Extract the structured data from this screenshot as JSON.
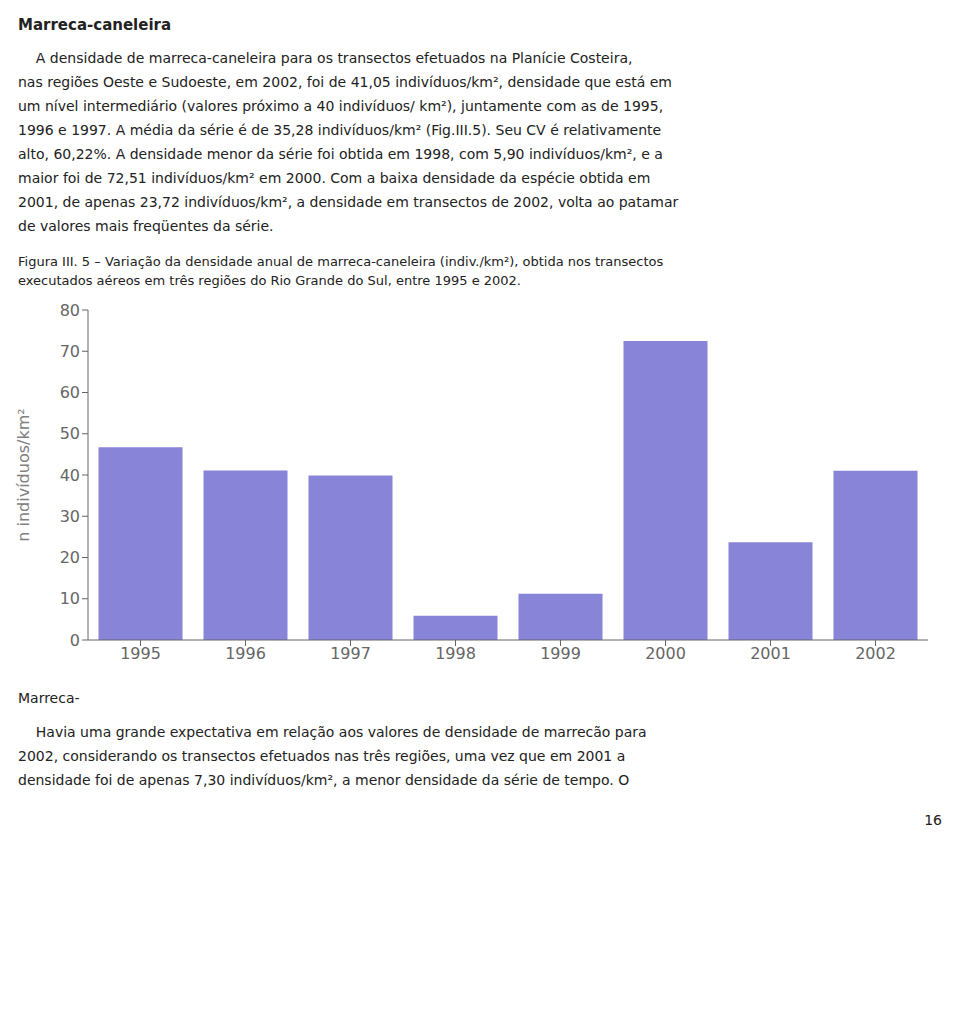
{
  "chart_data": {
    "type": "bar",
    "title": "Marreca-caneleira",
    "categories": [
      "1995",
      "1996",
      "1997",
      "1998",
      "1999",
      "2000",
      "2001",
      "2002"
    ],
    "values": [
      46.7,
      41.1,
      39.9,
      5.9,
      11.2,
      72.51,
      23.72,
      41.05
    ],
    "ylabel": "n indivíduos/km²",
    "ylim": [
      0,
      80
    ],
    "yticks": [
      0,
      10,
      20,
      30,
      40,
      50,
      60,
      70,
      80
    ],
    "grid": false,
    "color": "#8884d8",
    "annotations": [
      "    A densidade de marreca-caneleira para os transectos efetuados na Planície Costeira,",
      "nas regiões Oeste e Sudoeste, em 2002, foi de 41,05 indivíduos/km², densidade que está em",
      "um nível intermediário (valores próximo a 40 indivíduos/ km²), juntamente com as de 1995,",
      "1996 e 1997. A média da série é de 35,28 indivíduos/km² (Fig.III.5). Seu CV é relativamente",
      "alto, 60,22%. A densidade menor da série foi obtida em 1998, com 5,90 indivíduos/km², e a",
      "maior foi de 72,51 indivíduos/km² em 2000. Com a baixa densidade da espécie obtida em",
      "2001, de apenas 23,72 indivíduos/km², a densidade em transectos de 2002, volta ao patamar",
      "de valores mais freqüentes da série.",
      "Figura III. 5 – Variação da densidade anual de marreca-caneleira (indiv./km²), obtida nos transectos",
      "executados aéreos em três regiões do Rio Grande do Sul, entre 1995 e 2002.",
      "Marreca-",
      "    Havia uma grande expectativa em relação aos valores de densidade de marrecão para",
      "2002, considerando os transectos efetuados nas três regiões, uma vez que em 2001 a",
      "densidade foi de apenas 7,30 indivíduos/km², a menor densidade da série de tempo. O",
      "16"
    ]
  }
}
